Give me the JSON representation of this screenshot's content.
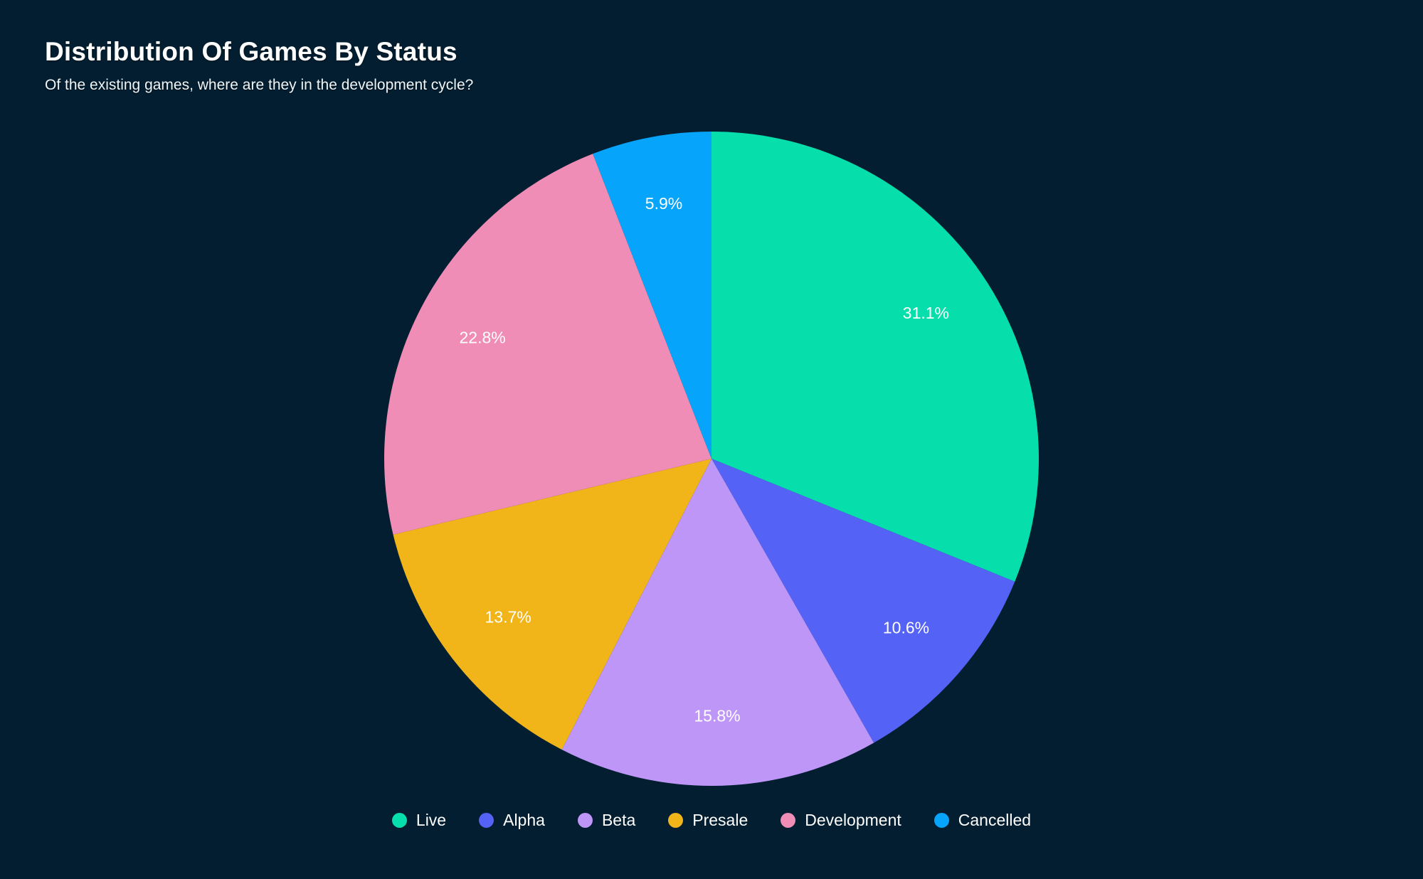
{
  "page": {
    "background_color": "#021E30",
    "text_color": "#FFFFFF"
  },
  "header": {
    "title": "Distribution Of Games By Status",
    "subtitle": "Of the existing games, where are they in the development cycle?"
  },
  "chart_data": {
    "type": "pie",
    "title": "Distribution Of Games By Status",
    "subtitle": "Of the existing games, where are they in the development cycle?",
    "start_angle_deg": 0,
    "direction": "clockwise",
    "legend_position": "bottom",
    "label_format": "percent",
    "slices": [
      {
        "label": "Live",
        "value": 31.1,
        "display": "31.1%",
        "color": "#06DFAC"
      },
      {
        "label": "Alpha",
        "value": 10.6,
        "display": "10.6%",
        "color": "#5463F5"
      },
      {
        "label": "Beta",
        "value": 15.8,
        "display": "15.8%",
        "color": "#BE96F8"
      },
      {
        "label": "Presale",
        "value": 13.7,
        "display": "13.7%",
        "color": "#F2B519"
      },
      {
        "label": "Development",
        "value": 22.8,
        "display": "22.8%",
        "color": "#EF8DB6"
      },
      {
        "label": "Cancelled",
        "value": 5.9,
        "display": "5.9%",
        "color": "#06A5FB"
      }
    ]
  }
}
